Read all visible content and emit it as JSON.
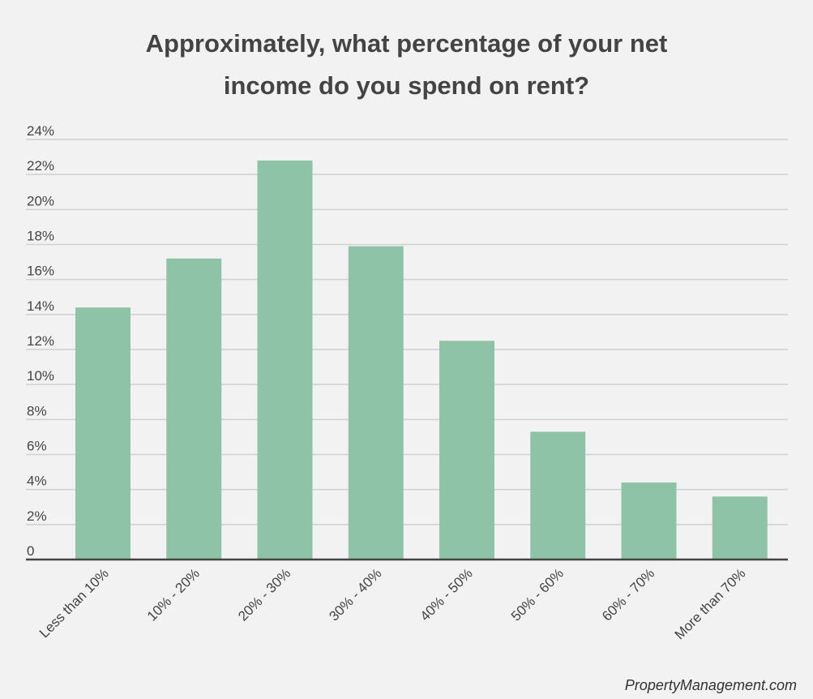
{
  "chart": {
    "title_line1": "Approximately, what percentage of your net",
    "title_line2": "income do you spend on rent?",
    "source": "PropertyManagement.com"
  },
  "colors": {
    "background": "#f2f2f2",
    "bar": "#8fc3a7",
    "grid": "#d0d0d0",
    "axis": "#444444",
    "text": "#444444"
  },
  "chart_data": {
    "type": "bar",
    "title": "Approximately, what percentage of your net income do you spend on rent?",
    "xlabel": "",
    "ylabel": "",
    "categories": [
      "Less than 10%",
      "10% - 20%",
      "20% - 30%",
      "30% - 40%",
      "40% - 50%",
      "50% - 60%",
      "60% - 70%",
      "More than 70%"
    ],
    "values": [
      14.4,
      17.2,
      22.8,
      17.9,
      12.5,
      7.3,
      4.4,
      3.6
    ],
    "ylim": [
      0,
      24
    ],
    "yticks": [
      "0",
      "2%",
      "4%",
      "6%",
      "8%",
      "10%",
      "12%",
      "14%",
      "16%",
      "18%",
      "20%",
      "22%",
      "24%"
    ],
    "grid": true,
    "legend": "none"
  }
}
